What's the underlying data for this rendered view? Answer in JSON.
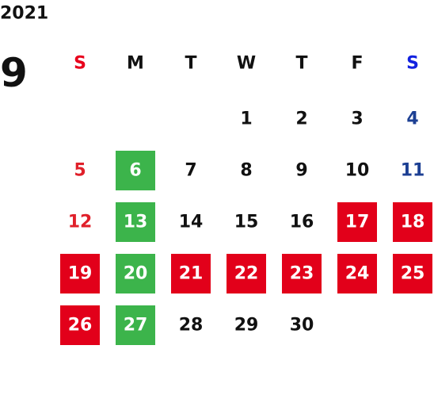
{
  "year": "2021",
  "month": "9",
  "weekdays": [
    {
      "text": "S",
      "color": "#e8001c"
    },
    {
      "text": "M",
      "color": "#111111"
    },
    {
      "text": "T",
      "color": "#111111"
    },
    {
      "text": "W",
      "color": "#111111"
    },
    {
      "text": "T",
      "color": "#111111"
    },
    {
      "text": "F",
      "color": "#111111"
    },
    {
      "text": "S",
      "color": "#1222e0"
    }
  ],
  "weeks": [
    [
      null,
      null,
      null,
      {
        "text": "1",
        "color": "#111111"
      },
      {
        "text": "2",
        "color": "#111111"
      },
      {
        "text": "3",
        "color": "#111111"
      },
      {
        "text": "4",
        "color": "#1c3f93"
      }
    ],
    [
      {
        "text": "5",
        "color": "#e0202a"
      },
      {
        "text": "6",
        "color": "#ffffff",
        "bg": "#3cb44b"
      },
      {
        "text": "7",
        "color": "#111111"
      },
      {
        "text": "8",
        "color": "#111111"
      },
      {
        "text": "9",
        "color": "#111111"
      },
      {
        "text": "10",
        "color": "#111111"
      },
      {
        "text": "11",
        "color": "#1c3f93"
      }
    ],
    [
      {
        "text": "12",
        "color": "#e0202a"
      },
      {
        "text": "13",
        "color": "#ffffff",
        "bg": "#3cb44b"
      },
      {
        "text": "14",
        "color": "#111111"
      },
      {
        "text": "15",
        "color": "#111111"
      },
      {
        "text": "16",
        "color": "#111111"
      },
      {
        "text": "17",
        "color": "#ffffff",
        "bg": "#e2001a"
      },
      {
        "text": "18",
        "color": "#ffffff",
        "bg": "#e2001a"
      }
    ],
    [
      {
        "text": "19",
        "color": "#ffffff",
        "bg": "#e2001a"
      },
      {
        "text": "20",
        "color": "#ffffff",
        "bg": "#3cb44b"
      },
      {
        "text": "21",
        "color": "#ffffff",
        "bg": "#e2001a"
      },
      {
        "text": "22",
        "color": "#ffffff",
        "bg": "#e2001a"
      },
      {
        "text": "23",
        "color": "#ffffff",
        "bg": "#e2001a"
      },
      {
        "text": "24",
        "color": "#ffffff",
        "bg": "#e2001a"
      },
      {
        "text": "25",
        "color": "#ffffff",
        "bg": "#e2001a"
      }
    ],
    [
      {
        "text": "26",
        "color": "#ffffff",
        "bg": "#e2001a"
      },
      {
        "text": "27",
        "color": "#ffffff",
        "bg": "#3cb44b"
      },
      {
        "text": "28",
        "color": "#111111"
      },
      {
        "text": "29",
        "color": "#111111"
      },
      {
        "text": "30",
        "color": "#111111"
      },
      null,
      null
    ]
  ]
}
